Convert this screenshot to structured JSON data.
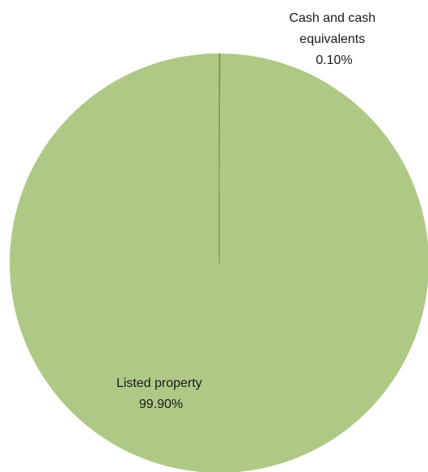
{
  "chart_data": {
    "type": "pie",
    "title": "",
    "slices": [
      {
        "name_lines": [
          "Cash and cash",
          "equivalents"
        ],
        "value": 0.1,
        "value_label": "0.10%",
        "color": "#7a9a52"
      },
      {
        "name_lines": [
          "Listed property"
        ],
        "value": 99.9,
        "value_label": "99.90%",
        "color": "#aec986"
      }
    ]
  }
}
